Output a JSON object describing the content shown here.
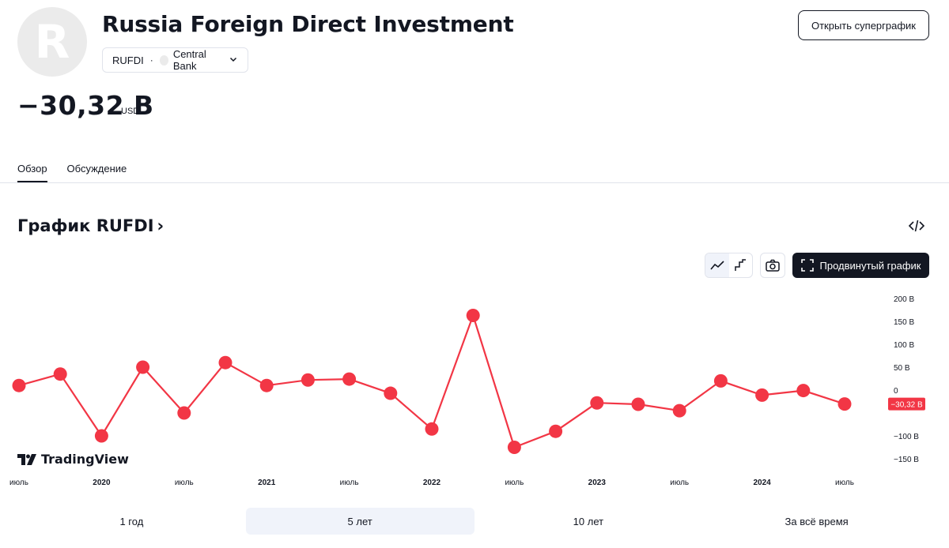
{
  "header": {
    "avatar_letter": "R",
    "title": "Russia Foreign Direct Investment",
    "symbol": "RUFDI",
    "separator": "·",
    "source": "Central Bank",
    "open_supergraph": "Открыть суперграфик"
  },
  "quote": {
    "value": "−30,32 B",
    "currency": "USD"
  },
  "tabs": [
    {
      "label": "Обзор",
      "active": true
    },
    {
      "label": "Обсуждение",
      "active": false
    }
  ],
  "chart_section": {
    "heading": "График RUFDI",
    "heading_arrow": "›",
    "advanced_chart": "Продвинутый график",
    "logo_text": "TradingView"
  },
  "chart_data": {
    "type": "line",
    "title": "",
    "xlabel": "",
    "ylabel": "",
    "ylim": [
      -160,
      210
    ],
    "grid": false,
    "line_color": "#f23645",
    "x_labels": [
      "июль",
      "2020",
      "июль",
      "2021",
      "июль",
      "2022",
      "июль",
      "2023",
      "июль",
      "2024",
      "июль"
    ],
    "y_ticks": [
      {
        "value": 200,
        "label": "200 B"
      },
      {
        "value": 150,
        "label": "150 B"
      },
      {
        "value": 100,
        "label": "100 B"
      },
      {
        "value": 50,
        "label": "50 B"
      },
      {
        "value": 0,
        "label": "0"
      },
      {
        "value": -100,
        "label": "−100 B"
      },
      {
        "value": -150,
        "label": "−150 B"
      }
    ],
    "last_value_label": "−30,32 B",
    "last_value": -30.32,
    "series": [
      {
        "x": [
          "2019-07",
          "2019-10",
          "2020-01",
          "2020-04",
          "2020-07",
          "2020-10",
          "2021-01",
          "2021-04",
          "2021-07",
          "2021-10",
          "2022-01",
          "2022-04",
          "2022-07",
          "2022-10",
          "2023-01",
          "2023-04",
          "2023-07",
          "2023-10",
          "2024-01",
          "2024-04",
          "2024-07"
        ],
        "values": [
          10,
          35,
          -100,
          50,
          -50,
          60,
          10,
          22,
          24,
          -7,
          -85,
          163,
          -125,
          -90,
          -28,
          -31,
          -45,
          20,
          -11,
          -1,
          -30.32
        ]
      }
    ]
  },
  "ranges": [
    {
      "label": "1 год",
      "active": false
    },
    {
      "label": "5 лет",
      "active": true
    },
    {
      "label": "10 лет",
      "active": false
    },
    {
      "label": "За всё время",
      "active": false
    }
  ]
}
